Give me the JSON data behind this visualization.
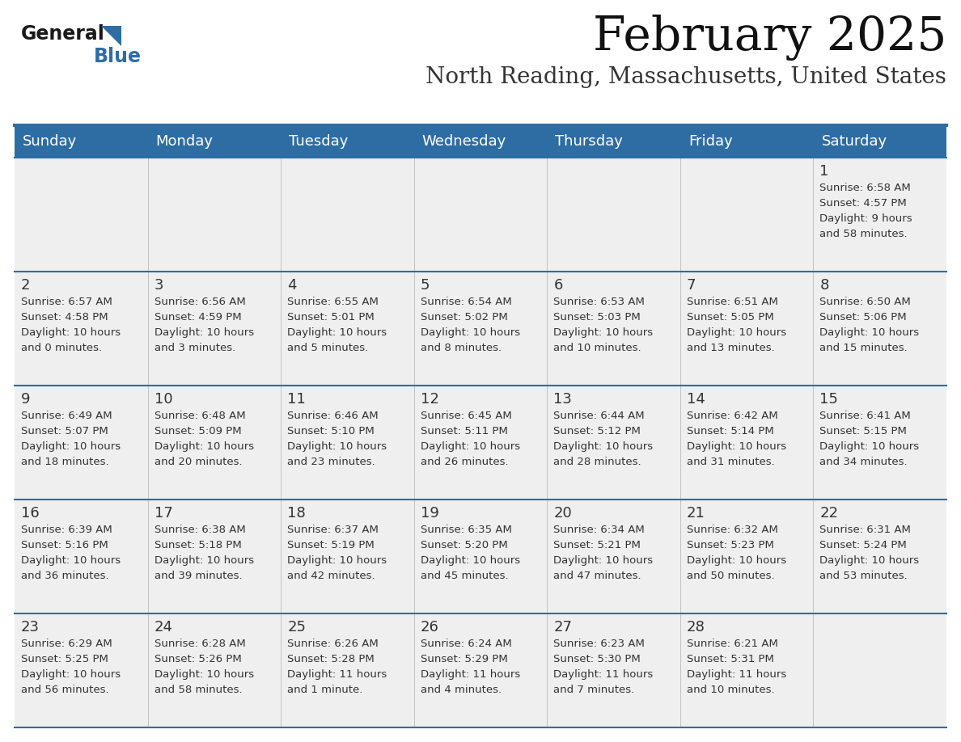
{
  "title": "February 2025",
  "subtitle": "North Reading, Massachusetts, United States",
  "header_color": "#2E6DA4",
  "header_text_color": "#FFFFFF",
  "day_headers": [
    "Sunday",
    "Monday",
    "Tuesday",
    "Wednesday",
    "Thursday",
    "Friday",
    "Saturday"
  ],
  "cell_bg_color": "#EFEFEF",
  "row_line_color": "#2E6DA4",
  "date_color": "#333333",
  "text_color": "#333333",
  "logo_text1": "General",
  "logo_text2": "Blue",
  "logo_color1": "#1a1a1a",
  "logo_color2": "#2E6DA4",
  "weeks": [
    [
      {
        "date": null,
        "sunrise": null,
        "sunset": null,
        "daylight": null
      },
      {
        "date": null,
        "sunrise": null,
        "sunset": null,
        "daylight": null
      },
      {
        "date": null,
        "sunrise": null,
        "sunset": null,
        "daylight": null
      },
      {
        "date": null,
        "sunrise": null,
        "sunset": null,
        "daylight": null
      },
      {
        "date": null,
        "sunrise": null,
        "sunset": null,
        "daylight": null
      },
      {
        "date": null,
        "sunrise": null,
        "sunset": null,
        "daylight": null
      },
      {
        "date": "1",
        "sunrise": "6:58 AM",
        "sunset": "4:57 PM",
        "daylight": "9 hours\nand 58 minutes."
      }
    ],
    [
      {
        "date": "2",
        "sunrise": "6:57 AM",
        "sunset": "4:58 PM",
        "daylight": "10 hours\nand 0 minutes."
      },
      {
        "date": "3",
        "sunrise": "6:56 AM",
        "sunset": "4:59 PM",
        "daylight": "10 hours\nand 3 minutes."
      },
      {
        "date": "4",
        "sunrise": "6:55 AM",
        "sunset": "5:01 PM",
        "daylight": "10 hours\nand 5 minutes."
      },
      {
        "date": "5",
        "sunrise": "6:54 AM",
        "sunset": "5:02 PM",
        "daylight": "10 hours\nand 8 minutes."
      },
      {
        "date": "6",
        "sunrise": "6:53 AM",
        "sunset": "5:03 PM",
        "daylight": "10 hours\nand 10 minutes."
      },
      {
        "date": "7",
        "sunrise": "6:51 AM",
        "sunset": "5:05 PM",
        "daylight": "10 hours\nand 13 minutes."
      },
      {
        "date": "8",
        "sunrise": "6:50 AM",
        "sunset": "5:06 PM",
        "daylight": "10 hours\nand 15 minutes."
      }
    ],
    [
      {
        "date": "9",
        "sunrise": "6:49 AM",
        "sunset": "5:07 PM",
        "daylight": "10 hours\nand 18 minutes."
      },
      {
        "date": "10",
        "sunrise": "6:48 AM",
        "sunset": "5:09 PM",
        "daylight": "10 hours\nand 20 minutes."
      },
      {
        "date": "11",
        "sunrise": "6:46 AM",
        "sunset": "5:10 PM",
        "daylight": "10 hours\nand 23 minutes."
      },
      {
        "date": "12",
        "sunrise": "6:45 AM",
        "sunset": "5:11 PM",
        "daylight": "10 hours\nand 26 minutes."
      },
      {
        "date": "13",
        "sunrise": "6:44 AM",
        "sunset": "5:12 PM",
        "daylight": "10 hours\nand 28 minutes."
      },
      {
        "date": "14",
        "sunrise": "6:42 AM",
        "sunset": "5:14 PM",
        "daylight": "10 hours\nand 31 minutes."
      },
      {
        "date": "15",
        "sunrise": "6:41 AM",
        "sunset": "5:15 PM",
        "daylight": "10 hours\nand 34 minutes."
      }
    ],
    [
      {
        "date": "16",
        "sunrise": "6:39 AM",
        "sunset": "5:16 PM",
        "daylight": "10 hours\nand 36 minutes."
      },
      {
        "date": "17",
        "sunrise": "6:38 AM",
        "sunset": "5:18 PM",
        "daylight": "10 hours\nand 39 minutes."
      },
      {
        "date": "18",
        "sunrise": "6:37 AM",
        "sunset": "5:19 PM",
        "daylight": "10 hours\nand 42 minutes."
      },
      {
        "date": "19",
        "sunrise": "6:35 AM",
        "sunset": "5:20 PM",
        "daylight": "10 hours\nand 45 minutes."
      },
      {
        "date": "20",
        "sunrise": "6:34 AM",
        "sunset": "5:21 PM",
        "daylight": "10 hours\nand 47 minutes."
      },
      {
        "date": "21",
        "sunrise": "6:32 AM",
        "sunset": "5:23 PM",
        "daylight": "10 hours\nand 50 minutes."
      },
      {
        "date": "22",
        "sunrise": "6:31 AM",
        "sunset": "5:24 PM",
        "daylight": "10 hours\nand 53 minutes."
      }
    ],
    [
      {
        "date": "23",
        "sunrise": "6:29 AM",
        "sunset": "5:25 PM",
        "daylight": "10 hours\nand 56 minutes."
      },
      {
        "date": "24",
        "sunrise": "6:28 AM",
        "sunset": "5:26 PM",
        "daylight": "10 hours\nand 58 minutes."
      },
      {
        "date": "25",
        "sunrise": "6:26 AM",
        "sunset": "5:28 PM",
        "daylight": "11 hours\nand 1 minute."
      },
      {
        "date": "26",
        "sunrise": "6:24 AM",
        "sunset": "5:29 PM",
        "daylight": "11 hours\nand 4 minutes."
      },
      {
        "date": "27",
        "sunrise": "6:23 AM",
        "sunset": "5:30 PM",
        "daylight": "11 hours\nand 7 minutes."
      },
      {
        "date": "28",
        "sunrise": "6:21 AM",
        "sunset": "5:31 PM",
        "daylight": "11 hours\nand 10 minutes."
      },
      {
        "date": null,
        "sunrise": null,
        "sunset": null,
        "daylight": null
      }
    ]
  ]
}
